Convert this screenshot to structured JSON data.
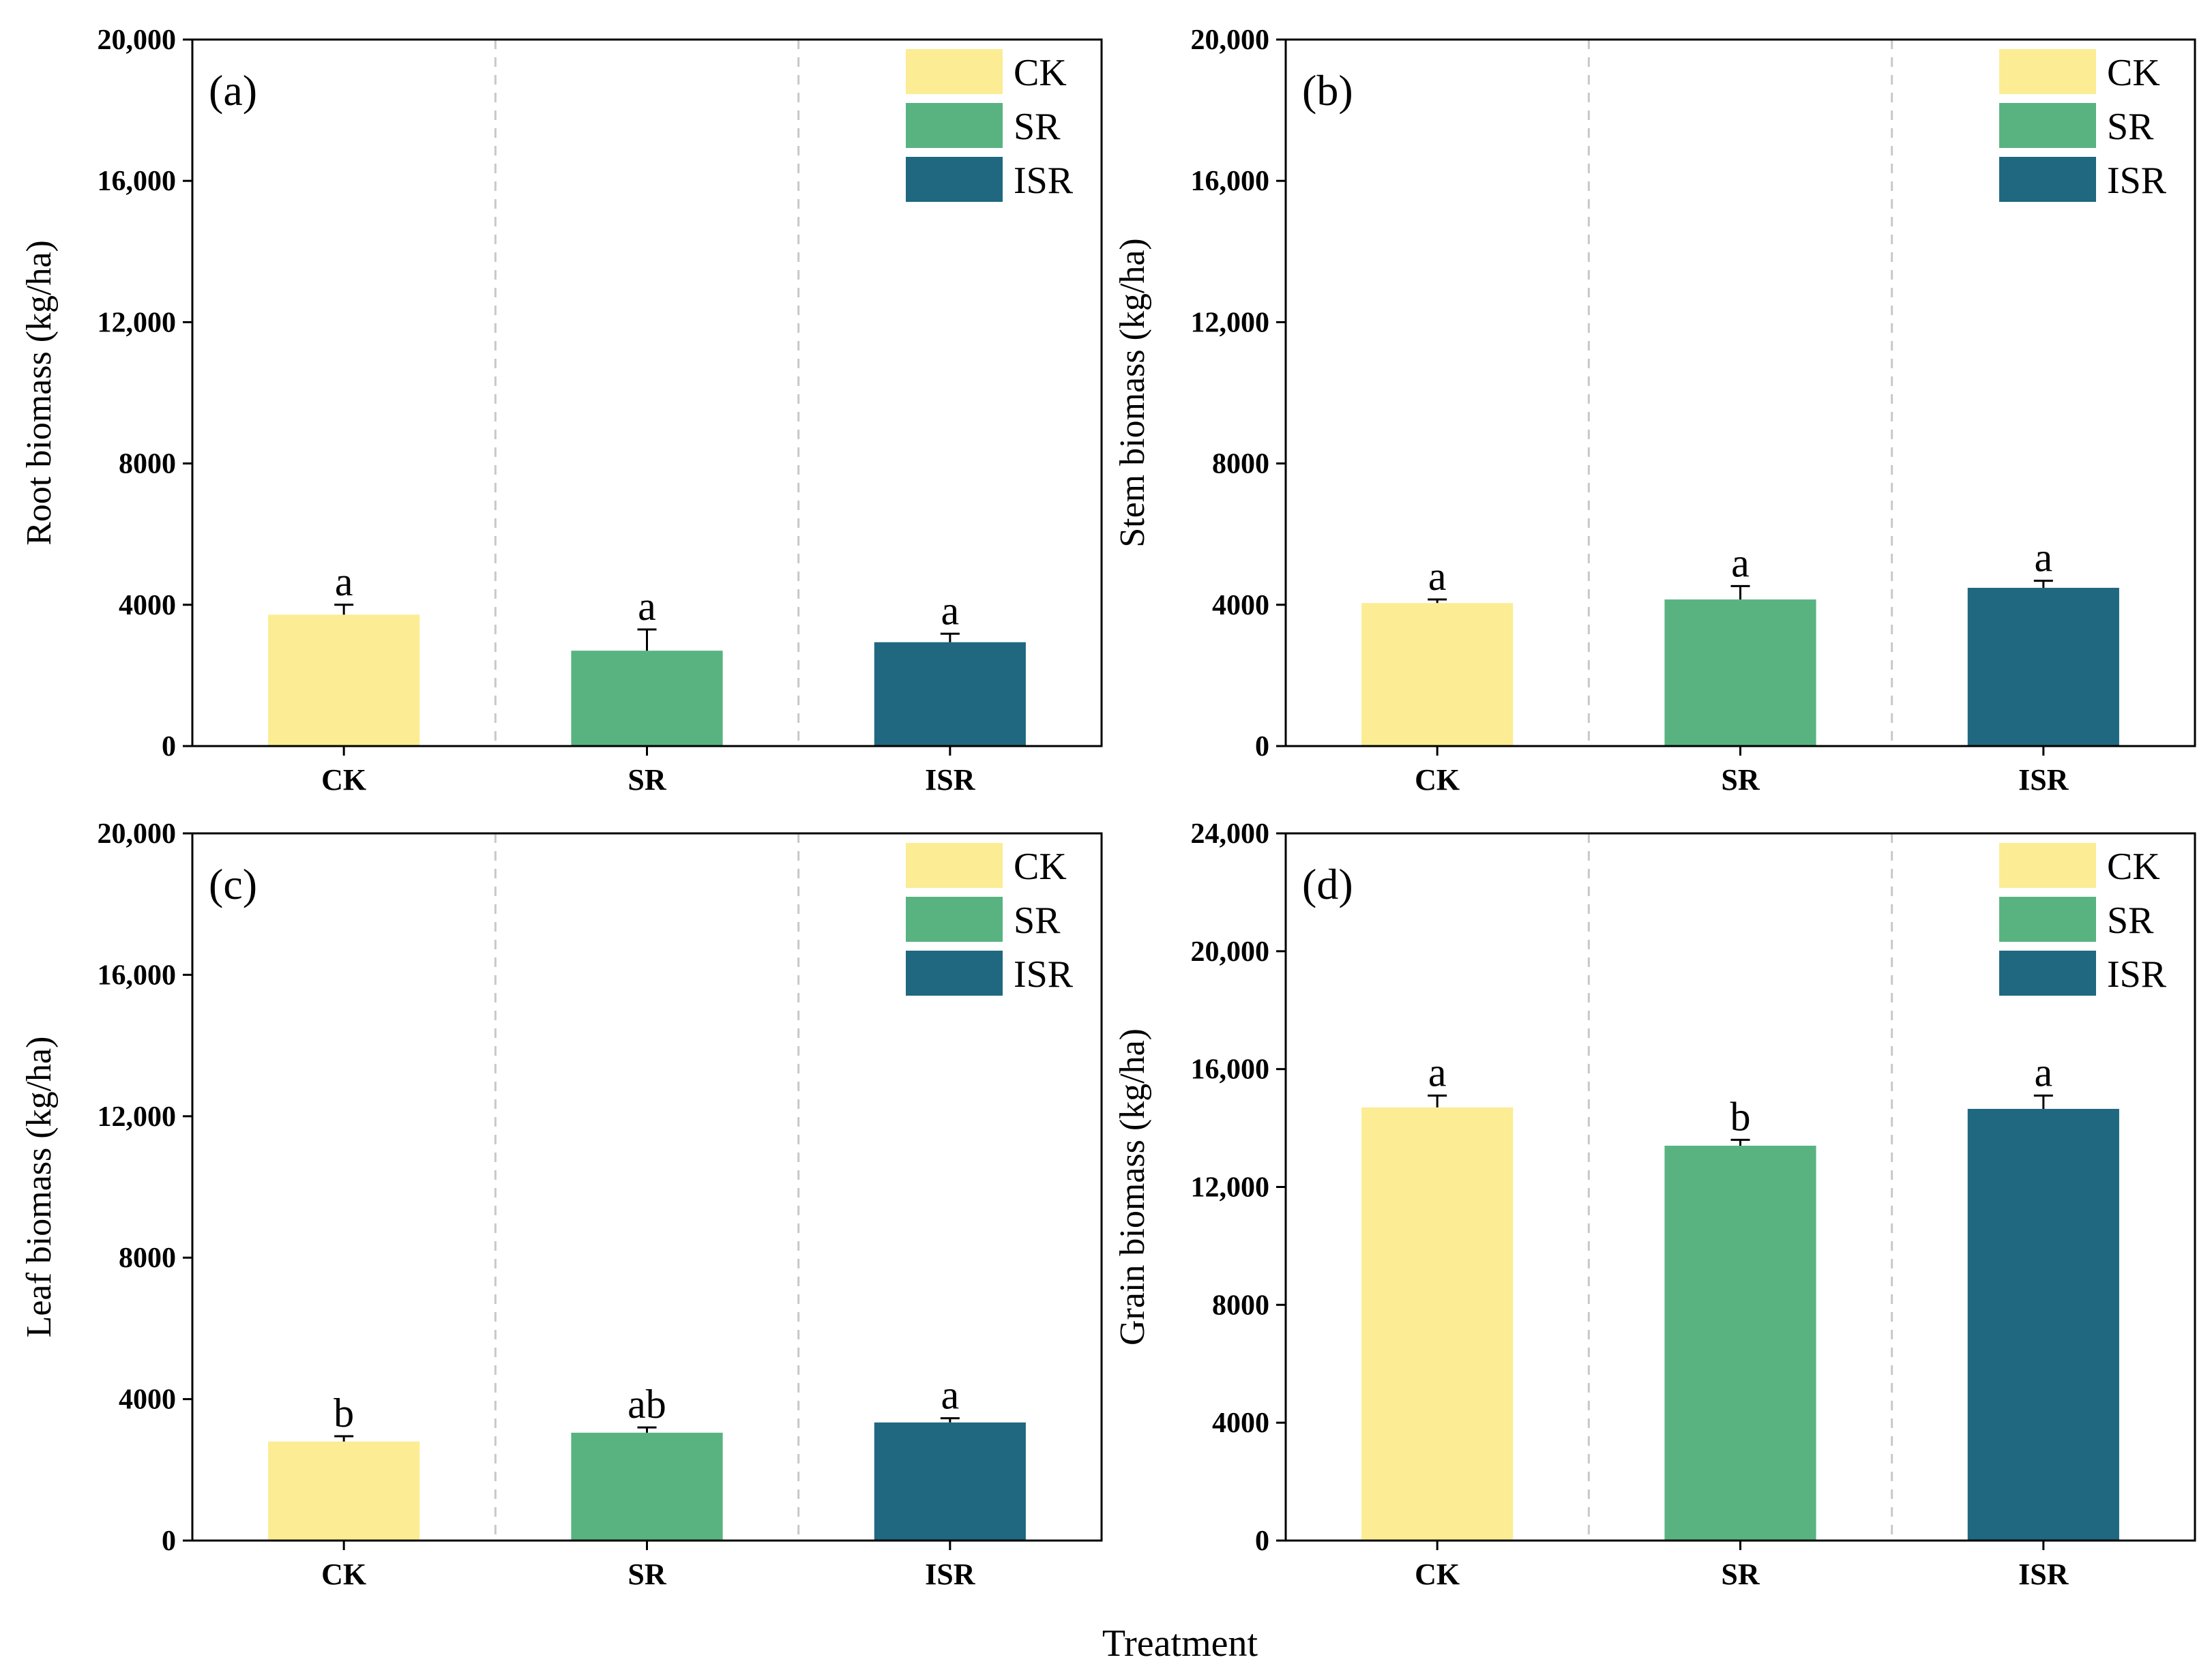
{
  "figure": {
    "xlabel": "Treatment"
  },
  "colors": {
    "CK": "#FCEC93",
    "SR": "#58B381",
    "ISR": "#1F6880",
    "axis": "#000000",
    "separator": "#C8C8C8"
  },
  "chart_data": [
    {
      "type": "bar",
      "panel_label": "(a)",
      "ylabel": "Root biomass (kg/ha)",
      "categories": [
        "CK",
        "SR",
        "ISR"
      ],
      "values": [
        3720,
        2700,
        2940
      ],
      "errors": [
        280,
        600,
        240
      ],
      "letters": [
        "a",
        "a",
        "a"
      ],
      "ylim": [
        0,
        20000
      ],
      "yticks": [
        0,
        4000,
        8000,
        12000,
        16000,
        20000
      ],
      "ytick_labels": [
        "0",
        "4000",
        "8000",
        "12,000",
        "16,000",
        "20,000"
      ],
      "legend": [
        "CK",
        "SR",
        "ISR"
      ],
      "legend_position": "top-right"
    },
    {
      "type": "bar",
      "panel_label": "(b)",
      "ylabel": "Stem biomass (kg/ha)",
      "categories": [
        "CK",
        "SR",
        "ISR"
      ],
      "values": [
        4050,
        4150,
        4480
      ],
      "errors": [
        100,
        380,
        200
      ],
      "letters": [
        "a",
        "a",
        "a"
      ],
      "ylim": [
        0,
        20000
      ],
      "yticks": [
        0,
        4000,
        8000,
        12000,
        16000,
        20000
      ],
      "ytick_labels": [
        "0",
        "4000",
        "8000",
        "12,000",
        "16,000",
        "20,000"
      ],
      "legend": [
        "CK",
        "SR",
        "ISR"
      ],
      "legend_position": "top-right"
    },
    {
      "type": "bar",
      "panel_label": "(c)",
      "ylabel": "Leaf biomass (kg/ha)",
      "categories": [
        "CK",
        "SR",
        "ISR"
      ],
      "values": [
        2800,
        3050,
        3340
      ],
      "errors": [
        150,
        150,
        120
      ],
      "letters": [
        "b",
        "ab",
        "a"
      ],
      "ylim": [
        0,
        20000
      ],
      "yticks": [
        0,
        4000,
        8000,
        12000,
        16000,
        20000
      ],
      "ytick_labels": [
        "0",
        "4000",
        "8000",
        "12,000",
        "16,000",
        "20,000"
      ],
      "legend": [
        "CK",
        "SR",
        "ISR"
      ],
      "legend_position": "top-right"
    },
    {
      "type": "bar",
      "panel_label": "(d)",
      "ylabel": "Grain biomass (kg/ha)",
      "categories": [
        "CK",
        "SR",
        "ISR"
      ],
      "values": [
        14700,
        13400,
        14650
      ],
      "errors": [
        400,
        200,
        450
      ],
      "letters": [
        "a",
        "b",
        "a"
      ],
      "ylim": [
        0,
        24000
      ],
      "yticks": [
        0,
        4000,
        8000,
        12000,
        16000,
        20000,
        24000
      ],
      "ytick_labels": [
        "0",
        "4000",
        "8000",
        "12,000",
        "16,000",
        "20,000",
        "24,000"
      ],
      "legend": [
        "CK",
        "SR",
        "ISR"
      ],
      "legend_position": "top-right"
    }
  ]
}
